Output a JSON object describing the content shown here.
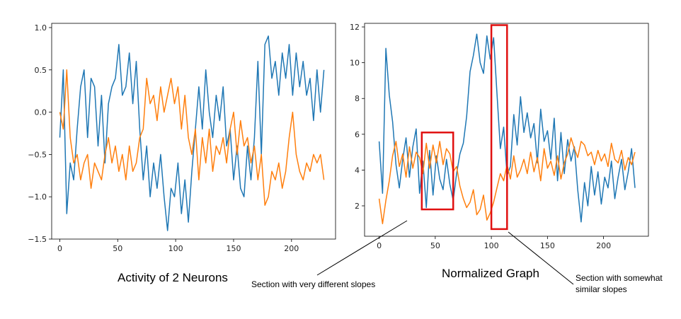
{
  "captions": {
    "left_title": "Activity of 2 Neurons",
    "right_title": "Normalized Graph",
    "annotation_different": "Section with very different slopes",
    "annotation_similar_line1": "Section with somewhat",
    "annotation_similar_line2": "similar slopes"
  },
  "colors": {
    "series_blue": "#1f77b4",
    "series_orange": "#ff7f0e",
    "highlight_box": "#e01010",
    "annotation_line": "#000000"
  },
  "chart_data": [
    {
      "type": "line",
      "title": "",
      "xlabel": "",
      "ylabel": "",
      "xlim": [
        -7,
        238
      ],
      "ylim": [
        -1.5,
        1.05
      ],
      "xticks": [
        0,
        50,
        100,
        150,
        200
      ],
      "xtick_labels": [
        "0",
        "50",
        "100",
        "150",
        "200"
      ],
      "yticks": [
        -1.5,
        -1.0,
        -0.5,
        0.0,
        0.5,
        1.0
      ],
      "ytick_labels": [
        "−1.5",
        "−1.0",
        "−0.5",
        "0.0",
        "0.5",
        "1.0"
      ],
      "grid": false,
      "series": [
        {
          "color": "#1f77b4",
          "x": [
            0,
            3,
            6,
            9,
            12,
            15,
            18,
            21,
            24,
            27,
            30,
            33,
            36,
            39,
            42,
            45,
            48,
            51,
            54,
            57,
            60,
            63,
            66,
            69,
            72,
            75,
            78,
            81,
            84,
            87,
            90,
            93,
            96,
            99,
            102,
            105,
            108,
            111,
            114,
            117,
            120,
            123,
            126,
            129,
            132,
            135,
            138,
            141,
            144,
            147,
            150,
            153,
            156,
            159,
            162,
            165,
            168,
            171,
            174,
            177,
            180,
            183,
            186,
            189,
            192,
            195,
            198,
            201,
            204,
            207,
            210,
            213,
            216,
            219,
            222,
            225,
            228
          ],
          "y": [
            -0.3,
            0.5,
            -1.2,
            -0.6,
            -0.8,
            -0.2,
            0.3,
            0.5,
            -0.3,
            0.4,
            0.3,
            -0.4,
            0.2,
            -0.6,
            0.1,
            0.3,
            0.4,
            0.8,
            0.2,
            0.3,
            0.7,
            0.1,
            0.6,
            -0.2,
            -0.8,
            -0.4,
            -1.0,
            -0.6,
            -0.9,
            -0.5,
            -1.0,
            -1.4,
            -0.9,
            -1.0,
            -0.6,
            -1.2,
            -0.8,
            -1.3,
            -0.7,
            -0.2,
            0.3,
            -0.2,
            0.5,
            0.0,
            -0.3,
            0.2,
            -0.1,
            0.3,
            -0.4,
            -0.2,
            -0.8,
            -0.4,
            -0.9,
            -1.0,
            -0.4,
            -0.8,
            -0.3,
            0.6,
            -0.5,
            0.8,
            0.9,
            0.4,
            0.6,
            0.2,
            0.7,
            0.4,
            0.8,
            0.2,
            0.7,
            0.3,
            0.6,
            0.2,
            0.4,
            -0.1,
            0.5,
            0.0,
            0.5
          ]
        },
        {
          "color": "#ff7f0e",
          "x": [
            0,
            3,
            6,
            9,
            12,
            15,
            18,
            21,
            24,
            27,
            30,
            33,
            36,
            39,
            42,
            45,
            48,
            51,
            54,
            57,
            60,
            63,
            66,
            69,
            72,
            75,
            78,
            81,
            84,
            87,
            90,
            93,
            96,
            99,
            102,
            105,
            108,
            111,
            114,
            117,
            120,
            123,
            126,
            129,
            132,
            135,
            138,
            141,
            144,
            147,
            150,
            153,
            156,
            159,
            162,
            165,
            168,
            171,
            174,
            177,
            180,
            183,
            186,
            189,
            192,
            195,
            198,
            201,
            204,
            207,
            210,
            213,
            216,
            219,
            222,
            225,
            228
          ],
          "y": [
            0.0,
            -0.2,
            0.5,
            -0.3,
            -0.6,
            -0.5,
            -0.8,
            -0.6,
            -0.5,
            -0.9,
            -0.6,
            -0.7,
            -0.8,
            -0.5,
            -0.3,
            -0.6,
            -0.4,
            -0.7,
            -0.5,
            -0.8,
            -0.4,
            -0.7,
            -0.6,
            -0.3,
            -0.2,
            0.4,
            0.1,
            0.2,
            -0.1,
            0.3,
            0.0,
            0.2,
            0.4,
            0.1,
            0.3,
            -0.2,
            0.2,
            -0.3,
            -0.5,
            -0.2,
            -0.8,
            -0.3,
            -0.6,
            -0.2,
            -0.7,
            -0.4,
            -0.5,
            -0.3,
            -0.6,
            -0.2,
            0.0,
            -0.5,
            -0.1,
            -0.4,
            -0.3,
            -0.6,
            -0.4,
            -0.8,
            -0.5,
            -1.1,
            -1.0,
            -0.7,
            -0.8,
            -0.6,
            -0.9,
            -0.7,
            -0.3,
            0.0,
            -0.5,
            -0.7,
            -0.8,
            -0.6,
            -0.7,
            -0.5,
            -0.6,
            -0.5,
            -0.8
          ]
        }
      ]
    },
    {
      "type": "line",
      "title": "",
      "xlabel": "",
      "ylabel": "",
      "xlim": [
        -13,
        240
      ],
      "ylim": [
        0.3,
        12.2
      ],
      "xticks": [
        0,
        50,
        100,
        150,
        200
      ],
      "xtick_labels": [
        "0",
        "50",
        "100",
        "150",
        "200"
      ],
      "yticks": [
        2,
        4,
        6,
        8,
        10,
        12
      ],
      "ytick_labels": [
        "2",
        "4",
        "6",
        "8",
        "10",
        "12"
      ],
      "grid": false,
      "highlights": [
        {
          "x": [
            38,
            66
          ],
          "y": [
            1.8,
            6.1
          ]
        },
        {
          "x": [
            100,
            114
          ],
          "y": [
            0.7,
            12.1
          ]
        }
      ],
      "series": [
        {
          "color": "#1f77b4",
          "x": [
            0,
            3,
            6,
            9,
            12,
            15,
            18,
            21,
            24,
            27,
            30,
            33,
            36,
            39,
            42,
            45,
            48,
            51,
            54,
            57,
            60,
            63,
            66,
            69,
            72,
            75,
            78,
            81,
            84,
            87,
            90,
            93,
            96,
            99,
            102,
            105,
            108,
            111,
            114,
            117,
            120,
            123,
            126,
            129,
            132,
            135,
            138,
            141,
            144,
            147,
            150,
            153,
            156,
            159,
            162,
            165,
            168,
            171,
            174,
            177,
            180,
            183,
            186,
            189,
            192,
            195,
            198,
            201,
            204,
            207,
            210,
            213,
            216,
            219,
            222,
            225,
            228
          ],
          "y": [
            5.6,
            2.7,
            10.8,
            8.2,
            6.7,
            4.3,
            3.0,
            4.6,
            5.8,
            3.6,
            5.3,
            6.3,
            2.7,
            4.5,
            1.9,
            5.1,
            2.6,
            4.8,
            3.5,
            2.9,
            4.6,
            3.2,
            2.3,
            3.8,
            4.9,
            5.5,
            7.0,
            9.5,
            10.4,
            11.6,
            10.0,
            9.4,
            11.5,
            10.2,
            11.4,
            8.3,
            5.2,
            6.4,
            3.7,
            4.2,
            7.1,
            5.4,
            8.1,
            6.1,
            7.2,
            5.8,
            6.6,
            4.4,
            7.4,
            5.6,
            6.2,
            4.6,
            6.9,
            3.4,
            6.1,
            3.8,
            5.7,
            4.5,
            5.3,
            2.9,
            1.1,
            3.3,
            2.0,
            4.2,
            2.6,
            3.9,
            2.1,
            3.6,
            3.0,
            4.5,
            2.4,
            3.6,
            4.6,
            2.9,
            3.9,
            5.2,
            3.0
          ]
        },
        {
          "color": "#ff7f0e",
          "x": [
            0,
            3,
            6,
            9,
            12,
            15,
            18,
            21,
            24,
            27,
            30,
            33,
            36,
            39,
            42,
            45,
            48,
            51,
            54,
            57,
            60,
            63,
            66,
            69,
            72,
            75,
            78,
            81,
            84,
            87,
            90,
            93,
            96,
            99,
            102,
            105,
            108,
            111,
            114,
            117,
            120,
            123,
            126,
            129,
            132,
            135,
            138,
            141,
            144,
            147,
            150,
            153,
            156,
            159,
            162,
            165,
            168,
            171,
            174,
            177,
            180,
            183,
            186,
            189,
            192,
            195,
            198,
            201,
            204,
            207,
            210,
            213,
            216,
            219,
            222,
            225,
            228
          ],
          "y": [
            2.4,
            1.0,
            2.3,
            3.4,
            4.8,
            5.6,
            4.2,
            4.9,
            3.6,
            5.3,
            4.1,
            5.0,
            4.7,
            3.8,
            5.5,
            4.1,
            5.4,
            4.4,
            5.6,
            4.3,
            5.2,
            4.9,
            3.9,
            4.2,
            3.1,
            2.4,
            1.9,
            2.2,
            2.9,
            1.5,
            1.8,
            2.6,
            1.2,
            1.6,
            2.2,
            3.0,
            3.8,
            3.4,
            4.3,
            3.5,
            4.8,
            3.6,
            4.0,
            4.6,
            3.8,
            5.0,
            3.9,
            4.7,
            3.4,
            5.2,
            4.1,
            4.5,
            3.7,
            4.8,
            3.5,
            4.4,
            4.9,
            5.8,
            5.2,
            4.7,
            5.6,
            5.4,
            4.8,
            5.0,
            4.3,
            5.1,
            4.5,
            4.9,
            4.2,
            5.5,
            4.6,
            4.4,
            5.1,
            4.0,
            4.7,
            4.3,
            5.0
          ]
        }
      ]
    }
  ]
}
